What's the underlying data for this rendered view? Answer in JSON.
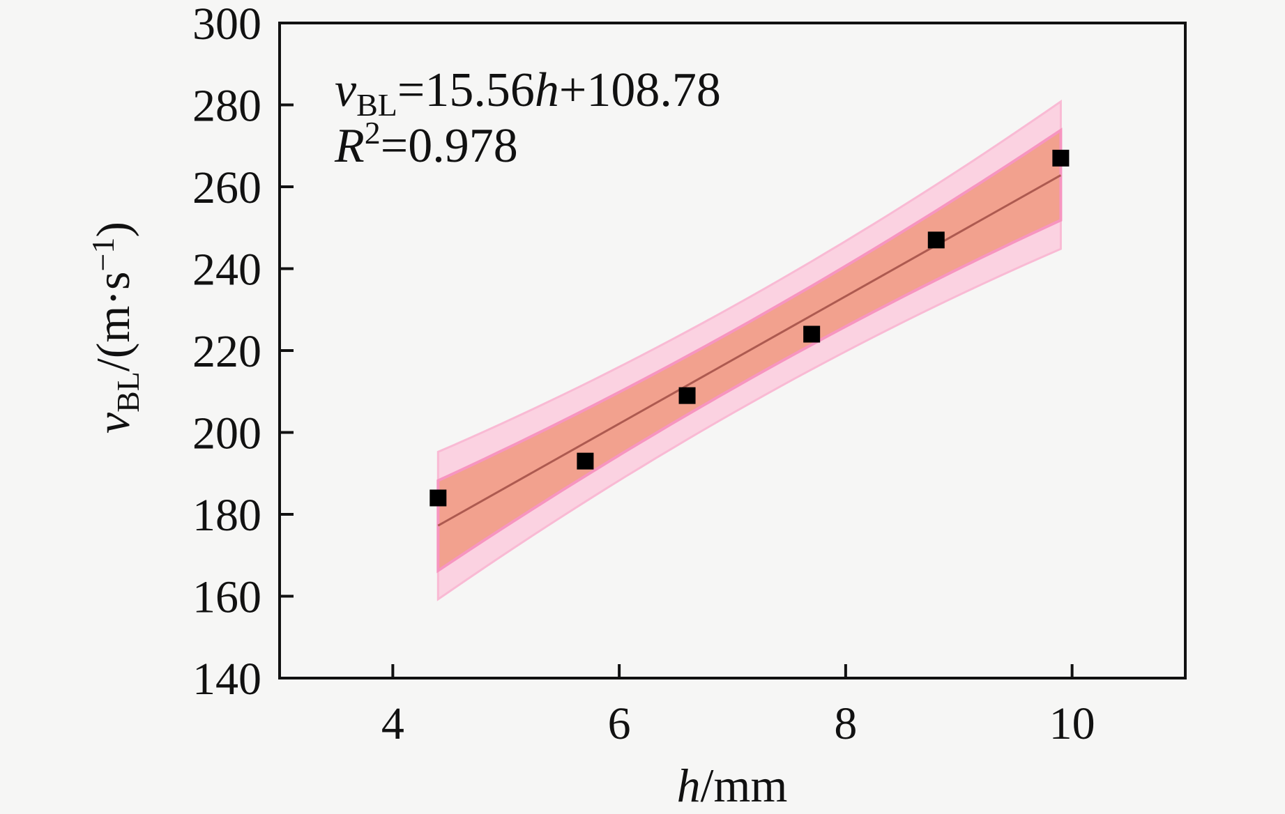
{
  "figure": {
    "background": "#f6f6f5",
    "frame_color": "#111111"
  },
  "chart_data": {
    "type": "scatter",
    "title": "",
    "xlabel": "h/mm",
    "ylabel": "vBL/(m·s−1)",
    "xlabel_parts": {
      "var": "h",
      "rest": "/mm"
    },
    "ylabel_parts": {
      "var": "v",
      "sub": "BL",
      "mid": "/(m·s",
      "sup": "−1",
      "end": ")"
    },
    "xlim": [
      3,
      11
    ],
    "ylim": [
      140,
      300
    ],
    "xticks": [
      4,
      6,
      8,
      10
    ],
    "yticks": [
      140,
      160,
      180,
      200,
      220,
      240,
      260,
      280,
      300
    ],
    "grid": false,
    "legend": "none",
    "points": [
      [
        4.4,
        184
      ],
      [
        5.7,
        193
      ],
      [
        6.6,
        209
      ],
      [
        7.7,
        224
      ],
      [
        8.8,
        247
      ],
      [
        9.9,
        267
      ]
    ],
    "fit": {
      "slope": 15.56,
      "intercept": 108.78,
      "x_start": 4.4,
      "x_end": 9.9
    },
    "bands": {
      "prediction": {
        "half_width_center": 13,
        "half_width_end": 18,
        "fill": "#fbd2e1",
        "edge": "#f9bad4"
      },
      "confidence": {
        "half_width_center": 7,
        "half_width_end": 11,
        "fill": "#f2a18e",
        "edge": "#f795c0"
      }
    },
    "fit_line_color": "#ad5a50",
    "marker": {
      "shape": "square",
      "color": "#000000",
      "size": 24
    },
    "annotation": {
      "line1": {
        "var1": "v",
        "sub1": "BL",
        "mid": "=15.56",
        "var2": "h",
        "end": "+108.78"
      },
      "line2": {
        "var": "R",
        "sup": "2",
        "rest": "=0.978"
      }
    }
  }
}
